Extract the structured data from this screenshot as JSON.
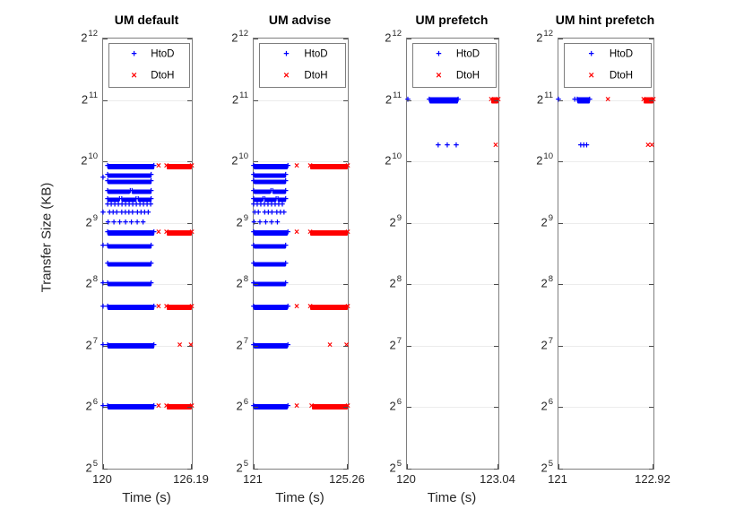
{
  "figure": {
    "ylabel": "Transfer Size (KB)"
  },
  "chart_data": [
    {
      "type": "scatter",
      "title": "UM default",
      "xlabel": "Time (s)",
      "ylabel": "Transfer Size (KB)",
      "xlim": [
        120,
        126.19
      ],
      "x_tick_values": [
        120,
        126.19
      ],
      "x_tick_labels": [
        "120",
        "126.19"
      ],
      "y_scale": "log2",
      "ylim_exp": [
        5,
        12
      ],
      "y_tick_base": "2",
      "y_tick_exps": [
        5,
        6,
        7,
        8,
        9,
        10,
        11,
        12
      ],
      "grid": "horizontal",
      "legend": {
        "position": "north",
        "entries": [
          {
            "marker": "+",
            "label": "HtoD",
            "color": "#0000ff"
          },
          {
            "marker": "×",
            "label": "DtoH",
            "color": "#ff0000"
          }
        ]
      },
      "series": [
        {
          "name": "HtoD",
          "marker": "+",
          "color": "#0000ff",
          "rows": [
            {
              "y": 9.92,
              "x": [
                120.32,
                123.55
              ],
              "h": 6
            },
            {
              "y": 9.77,
              "x": [
                120.32,
                123.35
              ]
            },
            {
              "y": 9.66,
              "x": [
                120.32,
                123.35
              ]
            },
            {
              "y": 9.51,
              "x": [
                120.32,
                121.9
              ]
            },
            {
              "y": 9.51,
              "x": [
                122.02,
                123.35
              ]
            },
            {
              "y": 9.38,
              "x": [
                120.32,
                121.15
              ]
            },
            {
              "y": 9.38,
              "x": [
                121.3,
                122.3
              ]
            },
            {
              "y": 9.38,
              "x": [
                122.45,
                123.35
              ]
            },
            {
              "y": 9.29,
              "x": [
                120.32,
                123.35
              ],
              "style": "dash"
            },
            {
              "y": 9.15,
              "x": [
                120.45,
                121.0
              ],
              "style": "dash"
            },
            {
              "y": 9.15,
              "x": [
                121.3,
                122.25
              ],
              "style": "dash"
            },
            {
              "y": 9.15,
              "x": [
                122.4,
                123.15
              ],
              "style": "dash"
            },
            {
              "y": 9.0,
              "x": [
                120.35,
                122.95
              ],
              "style": "sparse"
            },
            {
              "y": 8.83,
              "x": [
                120.32,
                123.55
              ],
              "h": 6
            },
            {
              "y": 8.61,
              "x": [
                120.32,
                123.35
              ]
            },
            {
              "y": 8.32,
              "x": [
                120.32,
                123.35
              ]
            },
            {
              "y": 8.0,
              "x": [
                120.32,
                123.35
              ]
            },
            {
              "y": 7.63,
              "x": [
                120.32,
                123.55
              ],
              "h": 6
            },
            {
              "y": 7.0,
              "x": [
                120.32,
                123.55
              ],
              "h": 6
            },
            {
              "y": 6.0,
              "x": [
                120.32,
                123.55
              ],
              "h": 6
            }
          ],
          "points": [
            [
              120.0,
              9.72
            ],
            [
              120.0,
              9.15
            ],
            [
              120.0,
              8.61
            ],
            [
              120.0,
              8.0
            ],
            [
              120.0,
              7.63
            ],
            [
              120.0,
              7.0
            ],
            [
              120.0,
              6.0
            ]
          ]
        },
        {
          "name": "DtoH",
          "marker": "×",
          "color": "#ff0000",
          "rows": [
            {
              "y": 9.92,
              "x": [
                124.42,
                126.19
              ],
              "h": 6
            },
            {
              "y": 8.83,
              "x": [
                124.42,
                126.19
              ],
              "h": 6
            },
            {
              "y": 7.63,
              "x": [
                124.42,
                126.19
              ],
              "h": 6
            },
            {
              "y": 6.0,
              "x": [
                124.42,
                126.19
              ],
              "h": 6
            }
          ],
          "points": [
            [
              123.87,
              9.92
            ],
            [
              123.87,
              8.83
            ],
            [
              123.87,
              7.63
            ],
            [
              123.87,
              6.0
            ],
            [
              125.35,
              7.0
            ],
            [
              126.12,
              7.0
            ]
          ]
        }
      ]
    },
    {
      "type": "scatter",
      "title": "UM advise",
      "xlabel": "Time (s)",
      "xlim": [
        121,
        125.26
      ],
      "x_tick_values": [
        121,
        125.26
      ],
      "x_tick_labels": [
        "121",
        "125.26"
      ],
      "y_scale": "log2",
      "ylim_exp": [
        5,
        12
      ],
      "y_tick_base": "2",
      "y_tick_exps": [
        5,
        6,
        7,
        8,
        9,
        10,
        11,
        12
      ],
      "grid": "horizontal",
      "legend": {
        "position": "north",
        "entries": [
          {
            "marker": "+",
            "label": "HtoD",
            "color": "#0000ff"
          },
          {
            "marker": "×",
            "label": "DtoH",
            "color": "#ff0000"
          }
        ]
      },
      "series": [
        {
          "name": "HtoD",
          "marker": "+",
          "color": "#0000ff",
          "rows": [
            {
              "y": 9.92,
              "x": [
                121.0,
                122.55
              ],
              "h": 6
            },
            {
              "y": 9.77,
              "x": [
                121.0,
                122.45
              ]
            },
            {
              "y": 9.66,
              "x": [
                121.0,
                122.45
              ]
            },
            {
              "y": 9.51,
              "x": [
                121.0,
                121.78
              ]
            },
            {
              "y": 9.51,
              "x": [
                121.86,
                122.45
              ]
            },
            {
              "y": 9.38,
              "x": [
                121.0,
                121.42
              ]
            },
            {
              "y": 9.38,
              "x": [
                121.5,
                122.02
              ]
            },
            {
              "y": 9.38,
              "x": [
                122.1,
                122.45
              ]
            },
            {
              "y": 9.29,
              "x": [
                121.0,
                122.45
              ],
              "style": "dash"
            },
            {
              "y": 9.15,
              "x": [
                121.05,
                121.35
              ],
              "style": "dash"
            },
            {
              "y": 9.15,
              "x": [
                121.5,
                121.98
              ],
              "style": "dash"
            },
            {
              "y": 9.15,
              "x": [
                122.05,
                122.4
              ],
              "style": "dash"
            },
            {
              "y": 9.0,
              "x": [
                121.02,
                122.32
              ],
              "style": "sparse"
            },
            {
              "y": 8.83,
              "x": [
                121.0,
                122.55
              ],
              "h": 6
            },
            {
              "y": 8.61,
              "x": [
                121.0,
                122.45
              ]
            },
            {
              "y": 8.32,
              "x": [
                121.0,
                122.45
              ]
            },
            {
              "y": 8.0,
              "x": [
                121.0,
                122.45
              ]
            },
            {
              "y": 7.63,
              "x": [
                121.0,
                122.55
              ],
              "h": 6
            },
            {
              "y": 7.0,
              "x": [
                121.0,
                122.55
              ],
              "h": 6
            },
            {
              "y": 6.0,
              "x": [
                121.0,
                122.55
              ],
              "h": 6
            }
          ],
          "points": []
        },
        {
          "name": "DtoH",
          "marker": "×",
          "color": "#ff0000",
          "rows": [
            {
              "y": 9.92,
              "x": [
                123.56,
                125.26
              ],
              "h": 6
            },
            {
              "y": 8.83,
              "x": [
                123.56,
                125.26
              ],
              "h": 6
            },
            {
              "y": 7.63,
              "x": [
                123.56,
                125.26
              ],
              "h": 6
            },
            {
              "y": 6.0,
              "x": [
                123.62,
                125.26
              ],
              "h": 6
            }
          ],
          "points": [
            [
              122.95,
              9.92
            ],
            [
              122.95,
              8.83
            ],
            [
              122.95,
              7.63
            ],
            [
              122.95,
              6.0
            ],
            [
              124.45,
              7.0
            ],
            [
              125.2,
              7.0
            ]
          ]
        }
      ]
    },
    {
      "type": "scatter",
      "title": "UM prefetch",
      "xlabel": "Time (s)",
      "xlim": [
        120,
        123.04
      ],
      "x_tick_values": [
        120,
        123.04
      ],
      "x_tick_labels": [
        "120",
        "123.04"
      ],
      "y_scale": "log2",
      "ylim_exp": [
        5,
        12
      ],
      "y_tick_base": "2",
      "y_tick_exps": [
        5,
        6,
        7,
        8,
        9,
        10,
        11,
        12
      ],
      "grid": "horizontal",
      "legend": {
        "position": "north",
        "entries": [
          {
            "marker": "+",
            "label": "HtoD",
            "color": "#0000ff"
          },
          {
            "marker": "×",
            "label": "DtoH",
            "color": "#ff0000"
          }
        ]
      },
      "series": [
        {
          "name": "HtoD",
          "marker": "+",
          "color": "#0000ff",
          "rows": [
            {
              "y": 11.0,
              "x": [
                120.74,
                121.7
              ],
              "h": 7
            }
          ],
          "points": [
            [
              120.03,
              11.0
            ],
            [
              121.04,
              10.25
            ],
            [
              121.34,
              10.25
            ],
            [
              121.64,
              10.25
            ]
          ]
        },
        {
          "name": "DtoH",
          "marker": "×",
          "color": "#ff0000",
          "rows": [
            {
              "y": 11.0,
              "x": [
                122.8,
                123.04
              ],
              "h": 7
            }
          ],
          "points": [
            [
              122.95,
              10.25
            ]
          ]
        }
      ]
    },
    {
      "type": "scatter",
      "title": "UM hint prefetch",
      "xlabel": "",
      "xlim": [
        121,
        122.92
      ],
      "x_tick_values": [
        121,
        122.92
      ],
      "x_tick_labels": [
        "121",
        "122.92"
      ],
      "y_scale": "log2",
      "ylim_exp": [
        5,
        12
      ],
      "y_tick_base": "2",
      "y_tick_exps": [
        5,
        6,
        7,
        8,
        9,
        10,
        11,
        12
      ],
      "grid": "horizontal",
      "legend": {
        "position": "north",
        "entries": [
          {
            "marker": "+",
            "label": "HtoD",
            "color": "#0000ff"
          },
          {
            "marker": "×",
            "label": "DtoH",
            "color": "#ff0000"
          }
        ]
      },
      "series": [
        {
          "name": "HtoD",
          "marker": "+",
          "color": "#0000ff",
          "rows": [
            {
              "y": 11.0,
              "x": [
                121.38,
                121.63
              ],
              "h": 7
            }
          ],
          "points": [
            [
              121.0,
              11.0
            ],
            [
              121.33,
              11.0
            ],
            [
              121.45,
              10.25
            ],
            [
              121.51,
              10.25
            ],
            [
              121.57,
              10.25
            ]
          ]
        },
        {
          "name": "DtoH",
          "marker": "×",
          "color": "#ff0000",
          "rows": [
            {
              "y": 11.0,
              "x": [
                122.72,
                122.92
              ],
              "h": 7
            }
          ],
          "points": [
            [
              122.0,
              11.0
            ],
            [
              122.81,
              10.25
            ],
            [
              122.89,
              10.25
            ]
          ]
        }
      ]
    }
  ]
}
